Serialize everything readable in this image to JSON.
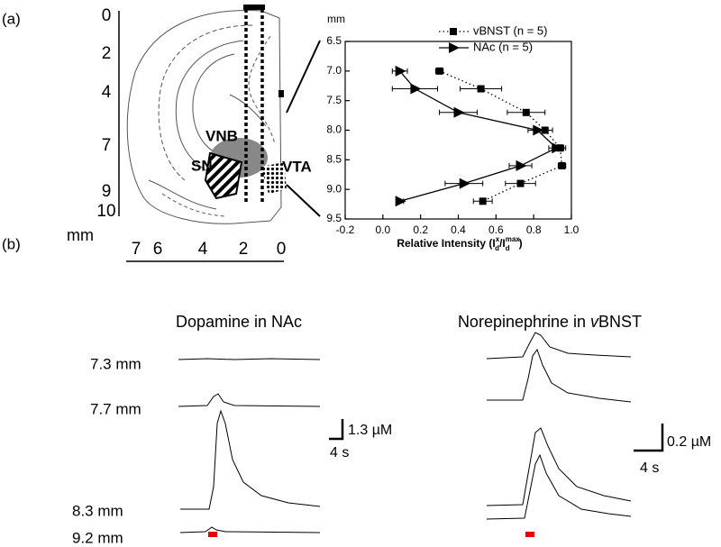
{
  "chart_data": {
    "type": "line",
    "ylabel": "mm",
    "xlabel": [
      "Relative Intensity (I",
      "x",
      "d",
      "/I",
      "max",
      "d",
      ")"
    ],
    "y": [
      7.0,
      7.3,
      7.7,
      8.0,
      8.3,
      8.6,
      8.9,
      9.2
    ],
    "series": [
      {
        "name": "vBNST (n = 5)",
        "color": "#000000",
        "style": "dotted",
        "marker": "square",
        "values": [
          0.3,
          0.52,
          0.76,
          0.86,
          0.94,
          0.95,
          0.73,
          0.53
        ],
        "errors": [
          0.02,
          0.11,
          0.1,
          0.04,
          0.03,
          0.02,
          0.08,
          0.05
        ]
      },
      {
        "name": "NAc (n = 5)",
        "color": "#000000",
        "style": "solid",
        "marker": "triangle",
        "values": [
          0.09,
          0.17,
          0.4,
          0.82,
          0.92,
          0.73,
          0.43,
          0.09
        ],
        "errors": [
          0.04,
          0.12,
          0.1,
          0.05,
          0.04,
          0.06,
          0.1,
          0.02
        ]
      }
    ],
    "xlim": [
      -0.2,
      1.0
    ],
    "ylim": [
      6.5,
      9.5
    ],
    "y_inverted": true,
    "xticks": [
      -0.2,
      {
        "value": 0,
        "label": "0.0"
      },
      0.2,
      0.4,
      0.6,
      0.8,
      {
        "value": 1,
        "label": "1.0"
      }
    ],
    "yticks": [
      6.5,
      {
        "value": 7,
        "label": "7.0"
      },
      7.5,
      {
        "value": 8,
        "label": "8.0"
      },
      8.5,
      {
        "value": 9,
        "label": "9.0"
      },
      9.5
    ]
  },
  "figure": {
    "panel_labels": [
      "(a)",
      "(b)"
    ],
    "brain": {
      "depth_labels": [
        "0",
        "2",
        "4",
        "7",
        "9",
        "10"
      ],
      "unit": "mm",
      "lateral_labels": [
        "7",
        "6",
        "4",
        "2",
        "0"
      ],
      "regions": [
        "VNB",
        "SN",
        "VTA"
      ]
    },
    "traces": {
      "titles": [
        "Dopamine in NAc",
        "Norepinephrine in ",
        "v",
        "BNST"
      ],
      "depths": [
        "7.3 mm",
        "7.7 mm",
        "8.3 mm",
        "9.2 mm"
      ],
      "scale_bars": [
        "1.3 µM",
        "4 s",
        "0.2 µM",
        "4 s"
      ]
    }
  }
}
